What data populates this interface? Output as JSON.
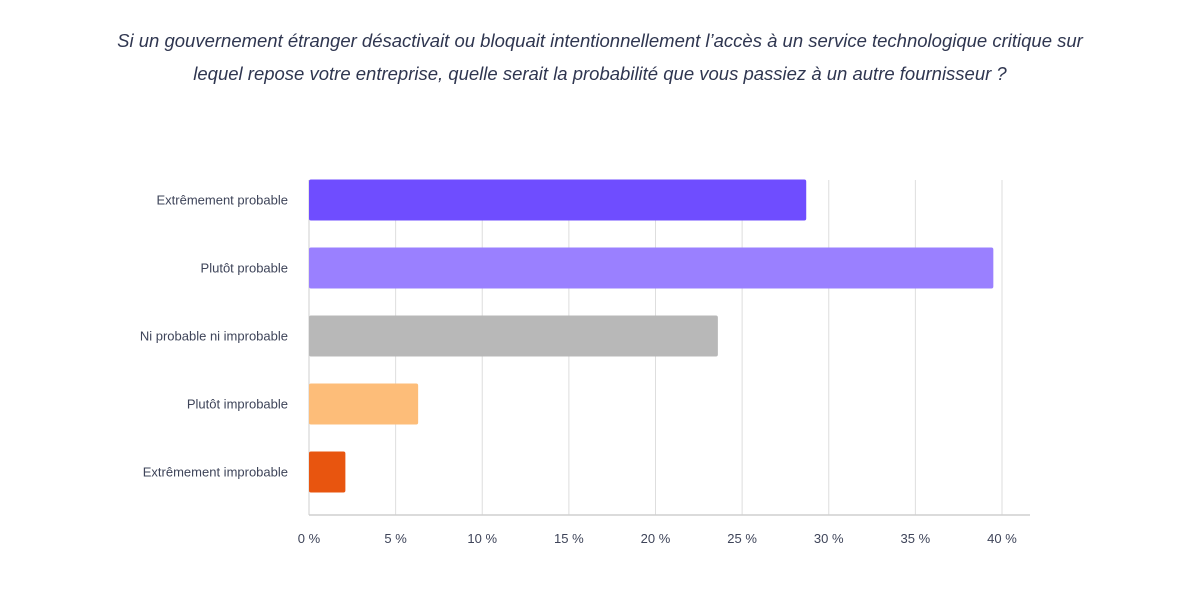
{
  "title": {
    "line1": "Si un gouvernement étranger désactivait ou bloquait intentionnellement l’accès à un service technologique critique sur",
    "line2": "lequel repose votre entreprise, quelle serait la probabilité que vous passiez à un autre fournisseur ?"
  },
  "chart_data": {
    "type": "bar",
    "orientation": "horizontal",
    "categories": [
      "Extrêmement probable",
      "Plutôt probable",
      "Ni probable ni improbable",
      "Plutôt improbable",
      "Extrêmement improbable"
    ],
    "values": [
      28.7,
      39.5,
      23.6,
      6.3,
      2.1
    ],
    "colors": [
      "#6f4dff",
      "#9a80ff",
      "#b8b8b8",
      "#fdbd79",
      "#e8550f"
    ],
    "xlim": [
      0,
      40
    ],
    "xticks": [
      0,
      5,
      10,
      15,
      20,
      25,
      30,
      35,
      40
    ],
    "xtick_labels": [
      "0 %",
      "5 %",
      "10 %",
      "15 %",
      "20 %",
      "25 %",
      "30 %",
      "35 %",
      "40 %"
    ],
    "grid": "vertical",
    "legend": "none"
  }
}
